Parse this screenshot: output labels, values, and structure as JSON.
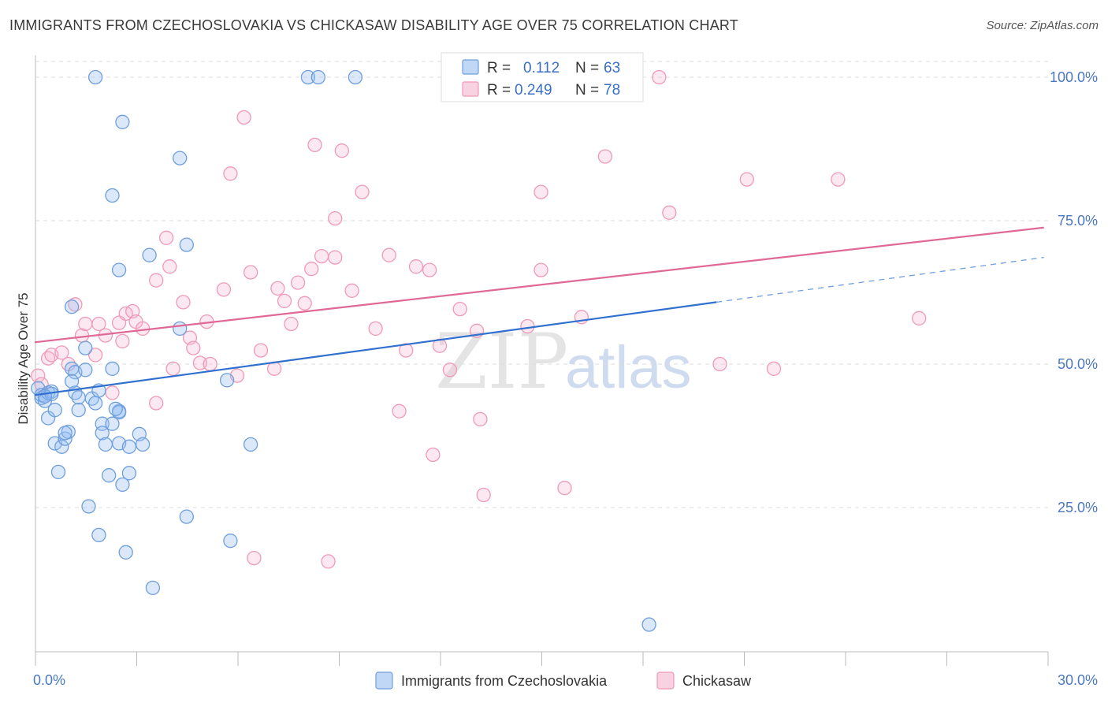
{
  "title": "IMMIGRANTS FROM CZECHOSLOVAKIA VS CHICKASAW DISABILITY AGE OVER 75 CORRELATION CHART",
  "source": "Source: ZipAtlas.com",
  "watermark": {
    "zip": "ZIP",
    "atlas": "atlas"
  },
  "colors": {
    "blue": "#6f9fdc",
    "blue_line": "#2f6fcf",
    "pink": "#ef9ab8",
    "pink_line": "#e06896",
    "axis_text": "#4a78c2"
  },
  "legend": {
    "series1": {
      "r_label": "R =",
      "r_value": "0.112",
      "n_label": "N =",
      "n_value": "63"
    },
    "series2": {
      "r_label": "R =",
      "r_value": "0.249",
      "n_label": "N =",
      "n_value": "78"
    }
  },
  "chart_data": {
    "type": "scatter",
    "title": "IMMIGRANTS FROM CZECHOSLOVAKIA VS CHICKASAW DISABILITY AGE OVER 75 CORRELATION CHART",
    "xlabel": "",
    "ylabel": "Disability Age Over 75",
    "xlim": [
      0,
      30
    ],
    "ylim": [
      3,
      101
    ],
    "x_tick_labels": [
      "0.0%",
      "30.0%"
    ],
    "y_ticks": [
      25,
      50,
      75,
      100
    ],
    "y_tick_labels": [
      "25.0%",
      "50.0%",
      "75.0%",
      "100.0%"
    ],
    "grid": true,
    "legend_position": "top-center",
    "series": [
      {
        "name": "Immigrants from Czechoslovakia",
        "color": "#6f9fdc",
        "trend": {
          "x0": 0,
          "y0": 44.6,
          "x1": 20.2,
          "y1": 60.8,
          "dashed_to_x": 29.9,
          "dashed_to_y": 68.6
        },
        "points": [
          [
            0.1,
            45.8
          ],
          [
            0.2,
            44.6
          ],
          [
            0.2,
            44.1
          ],
          [
            0.3,
            43.6
          ],
          [
            0.4,
            45.0
          ],
          [
            0.4,
            40.6
          ],
          [
            0.5,
            45.2
          ],
          [
            0.5,
            44.8
          ],
          [
            0.6,
            42.0
          ],
          [
            0.6,
            36.2
          ],
          [
            0.7,
            31.2
          ],
          [
            0.8,
            35.6
          ],
          [
            0.9,
            37.0
          ],
          [
            1.0,
            38.2
          ],
          [
            1.1,
            60.0
          ],
          [
            1.1,
            49.2
          ],
          [
            1.2,
            48.6
          ],
          [
            1.2,
            45.0
          ],
          [
            1.3,
            44.2
          ],
          [
            1.5,
            52.8
          ],
          [
            1.5,
            49.0
          ],
          [
            1.6,
            25.2
          ],
          [
            1.7,
            44.0
          ],
          [
            1.8,
            43.2
          ],
          [
            1.8,
            100.0
          ],
          [
            1.9,
            20.2
          ],
          [
            1.9,
            45.4
          ],
          [
            2.0,
            39.6
          ],
          [
            2.0,
            38.0
          ],
          [
            2.1,
            36.0
          ],
          [
            2.2,
            30.6
          ],
          [
            2.3,
            79.4
          ],
          [
            2.3,
            49.2
          ],
          [
            2.3,
            39.6
          ],
          [
            2.5,
            66.4
          ],
          [
            2.5,
            41.8
          ],
          [
            2.5,
            41.6
          ],
          [
            2.5,
            36.2
          ],
          [
            2.6,
            92.2
          ],
          [
            2.6,
            29.0
          ],
          [
            2.7,
            17.2
          ],
          [
            2.8,
            35.6
          ],
          [
            2.8,
            31.0
          ],
          [
            3.1,
            37.8
          ],
          [
            3.2,
            36.0
          ],
          [
            3.4,
            69.0
          ],
          [
            3.5,
            11.0
          ],
          [
            4.3,
            85.9
          ],
          [
            4.3,
            56.2
          ],
          [
            4.5,
            70.8
          ],
          [
            4.5,
            23.4
          ],
          [
            5.7,
            47.2
          ],
          [
            5.8,
            19.2
          ],
          [
            6.4,
            36.0
          ],
          [
            8.1,
            100.0
          ],
          [
            8.4,
            100.0
          ],
          [
            9.5,
            100.0
          ],
          [
            18.2,
            4.6
          ],
          [
            1.3,
            42.0
          ],
          [
            0.9,
            38.0
          ],
          [
            2.4,
            42.2
          ],
          [
            0.3,
            44.4
          ],
          [
            1.1,
            47.0
          ]
        ]
      },
      {
        "name": "Chickasaw",
        "color": "#ef9ab8",
        "trend": {
          "x0": 0,
          "y0": 53.8,
          "x1": 29.9,
          "y1": 73.8
        },
        "points": [
          [
            0.1,
            48.0
          ],
          [
            0.2,
            46.5
          ],
          [
            0.4,
            51.0
          ],
          [
            0.5,
            51.6
          ],
          [
            0.8,
            52.0
          ],
          [
            1.0,
            50.0
          ],
          [
            1.2,
            60.4
          ],
          [
            1.4,
            55.0
          ],
          [
            1.5,
            57.0
          ],
          [
            1.8,
            51.6
          ],
          [
            1.9,
            57.0
          ],
          [
            2.1,
            55.0
          ],
          [
            2.3,
            45.0
          ],
          [
            2.5,
            57.2
          ],
          [
            2.6,
            54.0
          ],
          [
            2.7,
            58.8
          ],
          [
            2.9,
            59.2
          ],
          [
            3.0,
            57.4
          ],
          [
            3.2,
            56.2
          ],
          [
            3.6,
            64.6
          ],
          [
            3.6,
            43.2
          ],
          [
            3.9,
            72.0
          ],
          [
            4.0,
            67.0
          ],
          [
            4.1,
            49.2
          ],
          [
            4.4,
            60.8
          ],
          [
            4.6,
            54.6
          ],
          [
            4.7,
            52.8
          ],
          [
            4.9,
            50.2
          ],
          [
            5.1,
            57.4
          ],
          [
            5.2,
            50.0
          ],
          [
            5.6,
            63.0
          ],
          [
            5.8,
            83.2
          ],
          [
            6.0,
            48.0
          ],
          [
            6.2,
            93.0
          ],
          [
            6.4,
            66.0
          ],
          [
            6.5,
            16.2
          ],
          [
            6.7,
            52.4
          ],
          [
            7.1,
            49.2
          ],
          [
            7.2,
            63.2
          ],
          [
            7.4,
            61.0
          ],
          [
            7.6,
            57.0
          ],
          [
            7.8,
            64.2
          ],
          [
            8.0,
            60.6
          ],
          [
            8.2,
            66.6
          ],
          [
            8.3,
            88.2
          ],
          [
            8.5,
            68.8
          ],
          [
            8.7,
            15.6
          ],
          [
            8.9,
            68.6
          ],
          [
            8.9,
            75.4
          ],
          [
            9.1,
            87.2
          ],
          [
            9.4,
            62.8
          ],
          [
            9.7,
            80.0
          ],
          [
            10.1,
            56.2
          ],
          [
            10.5,
            69.0
          ],
          [
            10.8,
            41.8
          ],
          [
            11.0,
            52.4
          ],
          [
            11.3,
            67.0
          ],
          [
            11.7,
            66.4
          ],
          [
            11.8,
            34.2
          ],
          [
            12.0,
            53.2
          ],
          [
            12.3,
            49.0
          ],
          [
            12.6,
            59.6
          ],
          [
            13.1,
            55.8
          ],
          [
            13.3,
            27.2
          ],
          [
            13.2,
            40.4
          ],
          [
            14.6,
            56.6
          ],
          [
            15.0,
            66.4
          ],
          [
            15.0,
            80.0
          ],
          [
            15.7,
            28.4
          ],
          [
            16.2,
            58.2
          ],
          [
            16.9,
            86.2
          ],
          [
            18.5,
            100.0
          ],
          [
            18.8,
            76.4
          ],
          [
            20.3,
            50.0
          ],
          [
            21.1,
            82.2
          ],
          [
            21.9,
            49.2
          ],
          [
            23.8,
            82.2
          ],
          [
            26.2,
            58.0
          ]
        ]
      }
    ]
  }
}
